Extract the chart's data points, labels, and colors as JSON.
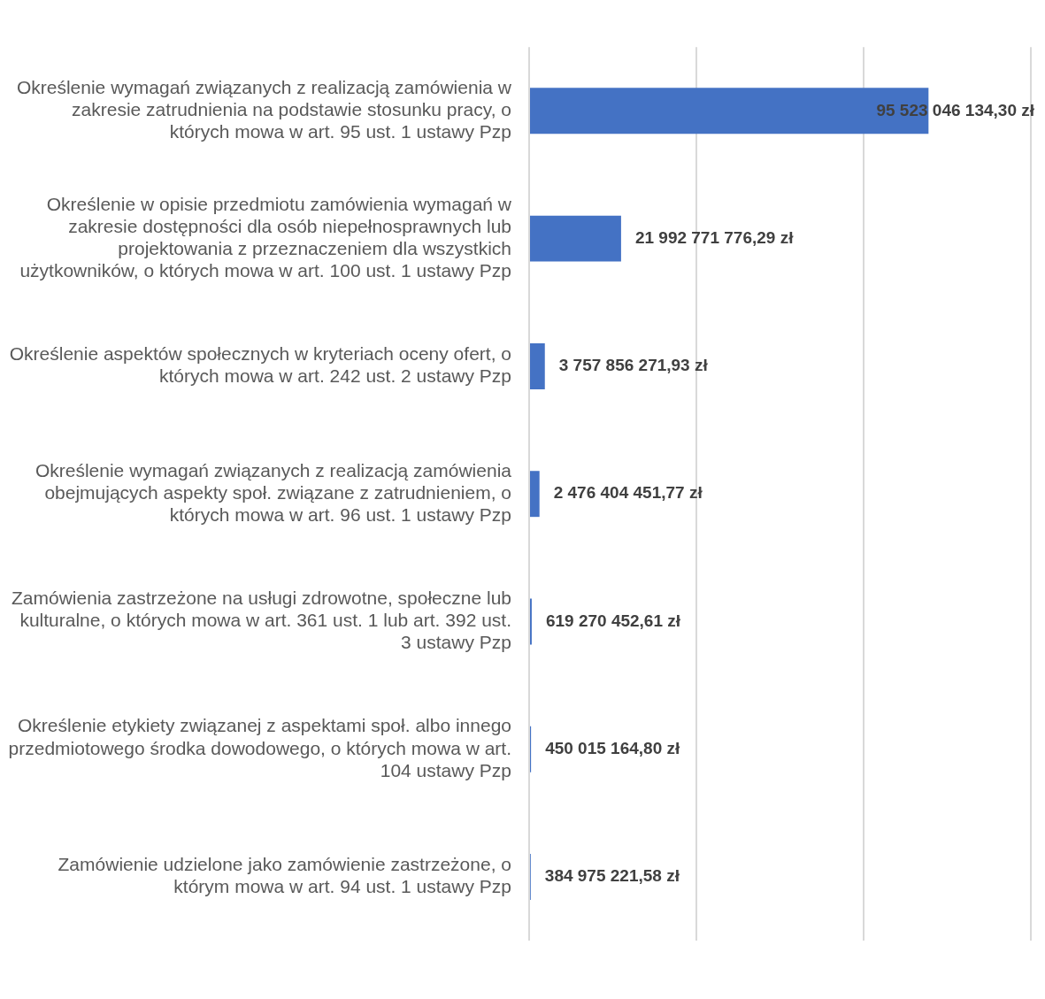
{
  "chart_data": {
    "type": "bar",
    "orientation": "horizontal",
    "categories": [
      "Określenie wymagań związanych z realizacją zamówienia w zakresie zatrudnienia na podstawie stosunku pracy, o których mowa w art. 95 ust. 1 ustawy Pzp",
      "Określenie w opisie przedmiotu zamówienia wymagań w zakresie dostępności dla osób niepełnosprawnych lub projektowania z przeznaczeniem dla wszystkich użytkowników, o których mowa w art. 100 ust. 1 ustawy Pzp",
      "Określenie aspektów społecznych w kryteriach oceny ofert, o których mowa w art. 242 ust. 2 ustawy Pzp",
      "Określenie wymagań związanych z realizacją zamówienia obejmujących aspekty społ. związane z zatrudnieniem, o których mowa w art. 96 ust. 1 ustawy Pzp",
      "Zamówienia zastrzeżone na usługi zdrowotne, społeczne lub kulturalne, o których mowa w art. 361 ust. 1 lub art. 392 ust. 3 ustawy Pzp",
      "Określenie etykiety związanej z aspektami społ. albo innego przedmiotowego środka dowodowego, o których mowa w art. 104 ustawy Pzp",
      "Zamówienie udzielone jako zamówienie zastrzeżone, o którym mowa w art. 94 ust. 1 ustawy Pzp"
    ],
    "values": [
      95523046134.3,
      21992771776.29,
      3757856271.93,
      2476404451.77,
      619270452.61,
      450015164.8,
      384975221.58
    ],
    "value_labels": [
      "95 523 046 134,30 zł",
      "21 992 771 776,29 zł",
      "3 757 856 271,93 zł",
      "2 476 404 451,77 zł",
      "619 270 452,61 zł",
      "450 015 164,80 zł",
      "384 975 221,58 zł"
    ],
    "color": "#4472c4",
    "xlim": [
      0,
      120000000000
    ],
    "xticks": [
      {
        "value": 0,
        "label": null
      },
      {
        "value": 40000000000,
        "label": null
      },
      {
        "value": 80000000000,
        "label": null
      },
      {
        "value": 120000000000,
        "label": null
      }
    ],
    "grid": "x",
    "tick_labels": "y",
    "legend": false
  }
}
